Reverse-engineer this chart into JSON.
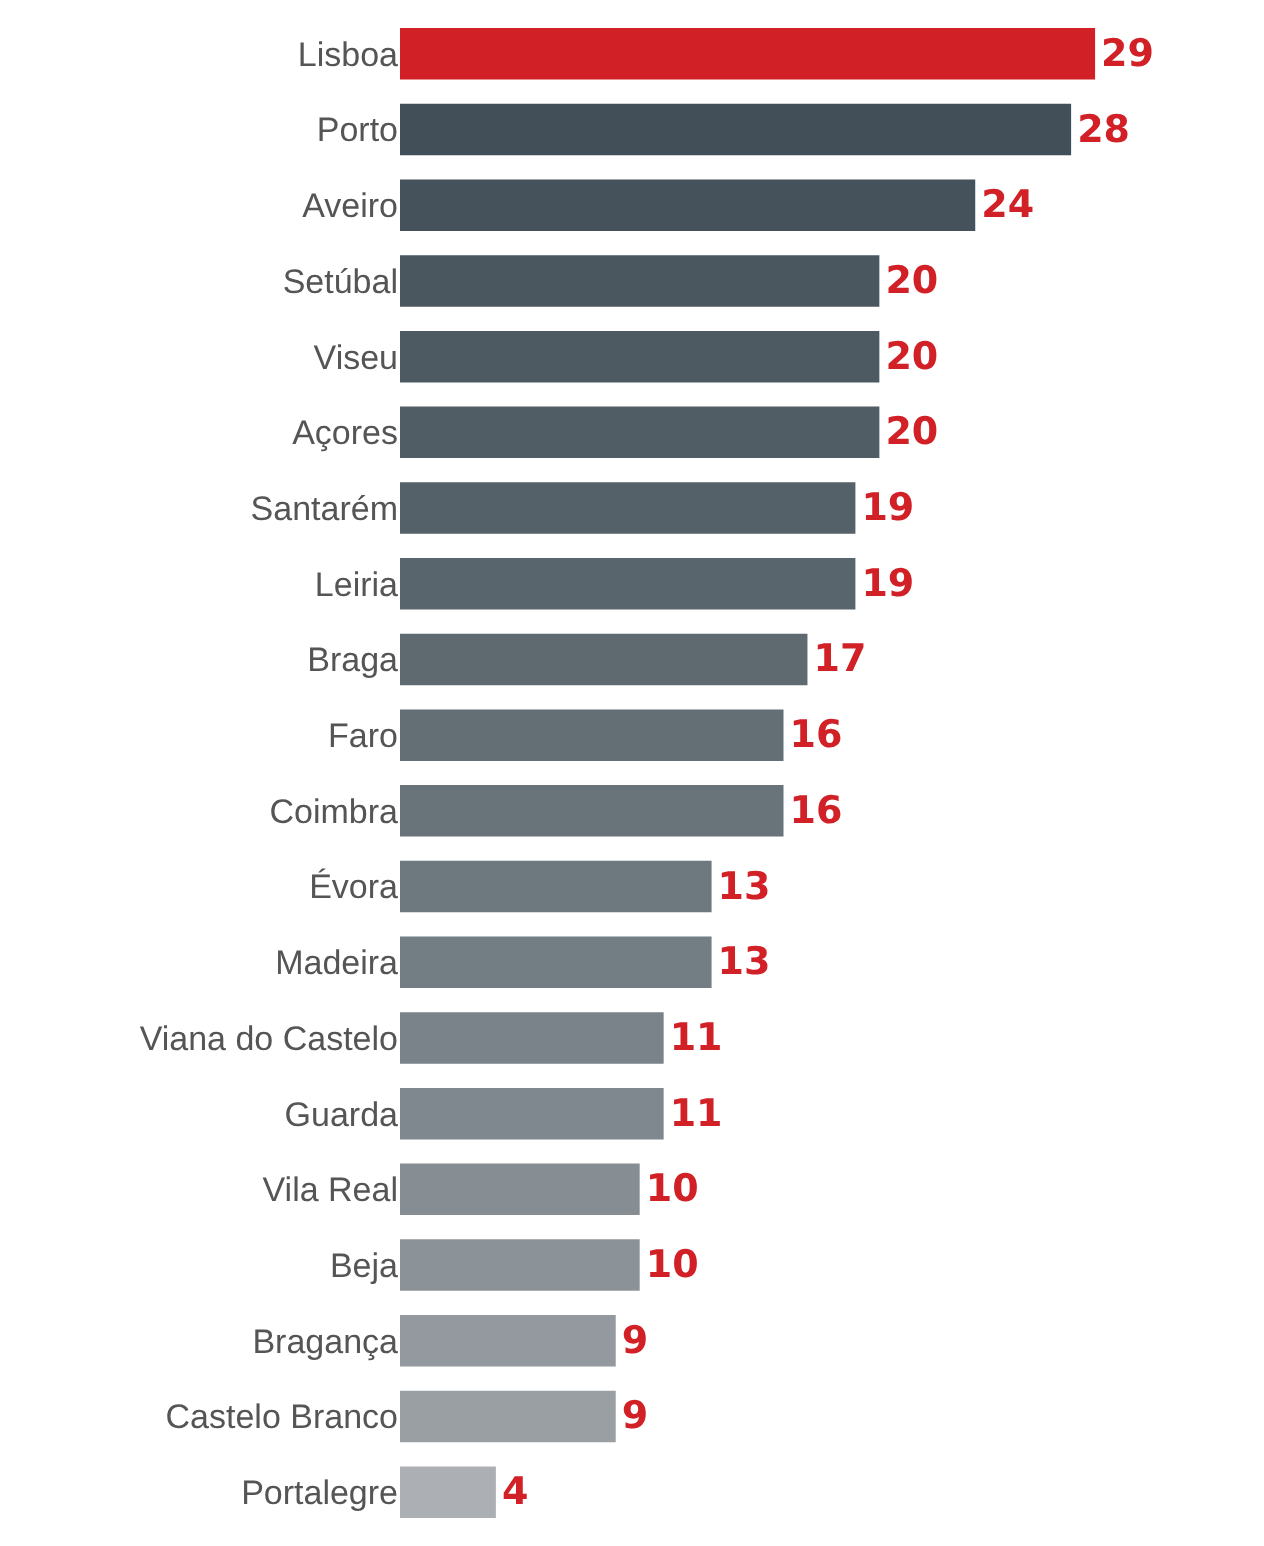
{
  "chart_data": {
    "type": "bar",
    "orientation": "horizontal",
    "data_labels": true,
    "grid": false,
    "legend": false,
    "categories": [
      "Lisboa",
      "Porto",
      "Aveiro",
      "Setúbal",
      "Viseu",
      "Açores",
      "Santarém",
      "Leiria",
      "Braga",
      "Faro",
      "Coimbra",
      "Évora",
      "Madeira",
      "Viana do Castelo",
      "Guarda",
      "Vila Real",
      "Beja",
      "Bragança",
      "Castelo Branco",
      "Portalegre"
    ],
    "values": [
      29,
      28,
      24,
      20,
      20,
      20,
      19,
      19,
      17,
      16,
      16,
      13,
      13,
      11,
      11,
      10,
      10,
      9,
      9,
      4
    ],
    "colors": [
      "#d22027",
      "#424f58",
      "#45525b",
      "#4a575f",
      "#4d5a62",
      "#505d65",
      "#556169",
      "#59656c",
      "#5e6970",
      "#636e75",
      "#68737a",
      "#6e787f",
      "#737d84",
      "#798389",
      "#7f888e",
      "#868e93",
      "#8c9398",
      "#93999e",
      "#999fa3",
      "#acb0b4"
    ]
  }
}
